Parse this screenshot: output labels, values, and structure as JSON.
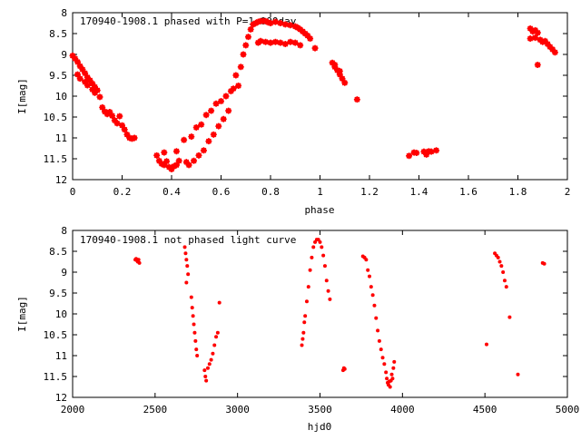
{
  "chart_data": [
    {
      "type": "scatter",
      "title": "170940-1908.1 phased with P=1.000day",
      "xlabel": "phase",
      "ylabel": "I[mag]",
      "xlim": [
        0,
        2
      ],
      "ylim": [
        12,
        8
      ],
      "y_inverted": true,
      "grid": false,
      "xticks": [
        "0",
        "0.2",
        "0.4",
        "0.6",
        "0.8",
        "1",
        "1.2",
        "1.4",
        "1.6",
        "1.8",
        "2"
      ],
      "yticks": [
        "8",
        "8.5",
        "9",
        "9.5",
        "10",
        "10.5",
        "11",
        "11.5",
        "12"
      ],
      "marker_color": "#ff0000",
      "marker": "star",
      "series": [
        {
          "points": [
            [
              0.0,
              9.03
            ],
            [
              0.01,
              9.1
            ],
            [
              0.02,
              9.18
            ],
            [
              0.03,
              9.28
            ],
            [
              0.04,
              9.36
            ],
            [
              0.05,
              9.45
            ],
            [
              0.06,
              9.55
            ],
            [
              0.07,
              9.62
            ],
            [
              0.08,
              9.7
            ],
            [
              0.09,
              9.78
            ],
            [
              0.1,
              9.86
            ],
            [
              0.02,
              9.48
            ],
            [
              0.03,
              9.58
            ],
            [
              0.05,
              9.66
            ],
            [
              0.06,
              9.74
            ],
            [
              0.08,
              9.84
            ],
            [
              0.09,
              9.92
            ],
            [
              0.11,
              10.02
            ],
            [
              0.12,
              10.27
            ],
            [
              0.13,
              10.37
            ],
            [
              0.14,
              10.43
            ],
            [
              0.15,
              10.38
            ],
            [
              0.16,
              10.47
            ],
            [
              0.17,
              10.58
            ],
            [
              0.18,
              10.65
            ],
            [
              0.19,
              10.48
            ],
            [
              0.2,
              10.7
            ],
            [
              0.21,
              10.8
            ],
            [
              0.22,
              10.92
            ],
            [
              0.23,
              11.0
            ],
            [
              0.24,
              11.02
            ],
            [
              0.25,
              11.0
            ],
            [
              0.34,
              11.42
            ],
            [
              0.35,
              11.55
            ],
            [
              0.36,
              11.62
            ],
            [
              0.37,
              11.65
            ],
            [
              0.38,
              11.56
            ],
            [
              0.37,
              11.35
            ],
            [
              0.39,
              11.7
            ],
            [
              0.4,
              11.75
            ],
            [
              0.41,
              11.68
            ],
            [
              0.42,
              11.65
            ],
            [
              0.43,
              11.55
            ],
            [
              0.42,
              11.32
            ],
            [
              0.45,
              11.05
            ],
            [
              0.46,
              11.58
            ],
            [
              0.47,
              11.65
            ],
            [
              0.48,
              10.97
            ],
            [
              0.49,
              11.55
            ],
            [
              0.5,
              10.75
            ],
            [
              0.51,
              11.42
            ],
            [
              0.52,
              10.68
            ],
            [
              0.53,
              11.3
            ],
            [
              0.54,
              10.45
            ],
            [
              0.55,
              11.08
            ],
            [
              0.56,
              10.35
            ],
            [
              0.57,
              10.92
            ],
            [
              0.58,
              10.18
            ],
            [
              0.59,
              10.72
            ],
            [
              0.6,
              10.12
            ],
            [
              0.61,
              10.55
            ],
            [
              0.62,
              10.0
            ],
            [
              0.63,
              10.35
            ],
            [
              0.64,
              9.88
            ],
            [
              0.65,
              9.82
            ],
            [
              0.66,
              9.5
            ],
            [
              0.67,
              9.75
            ],
            [
              0.68,
              9.3
            ],
            [
              0.69,
              9.0
            ],
            [
              0.7,
              8.78
            ],
            [
              0.71,
              8.58
            ],
            [
              0.72,
              8.4
            ],
            [
              0.73,
              8.28
            ],
            [
              0.74,
              8.25
            ],
            [
              0.75,
              8.22
            ],
            [
              0.76,
              8.2
            ],
            [
              0.77,
              8.2
            ],
            [
              0.78,
              8.2
            ],
            [
              0.79,
              8.23
            ],
            [
              0.75,
              8.72
            ],
            [
              0.76,
              8.68
            ],
            [
              0.78,
              8.7
            ],
            [
              0.8,
              8.72
            ],
            [
              0.82,
              8.7
            ],
            [
              0.84,
              8.72
            ],
            [
              0.86,
              8.75
            ],
            [
              0.88,
              8.7
            ],
            [
              0.9,
              8.72
            ],
            [
              0.92,
              8.78
            ],
            [
              0.8,
              8.25
            ],
            [
              0.82,
              8.22
            ],
            [
              0.84,
              8.25
            ],
            [
              0.86,
              8.28
            ],
            [
              0.88,
              8.3
            ],
            [
              0.9,
              8.33
            ],
            [
              0.91,
              8.36
            ],
            [
              0.92,
              8.4
            ],
            [
              0.93,
              8.45
            ],
            [
              0.94,
              8.5
            ],
            [
              0.95,
              8.55
            ],
            [
              0.96,
              8.62
            ],
            [
              0.98,
              8.85
            ],
            [
              1.05,
              9.2
            ],
            [
              1.06,
              9.3
            ],
            [
              1.07,
              9.38
            ],
            [
              1.08,
              9.48
            ],
            [
              1.09,
              9.58
            ],
            [
              1.1,
              9.68
            ],
            [
              1.06,
              9.25
            ],
            [
              1.08,
              9.4
            ],
            [
              1.15,
              10.08
            ],
            [
              1.36,
              11.43
            ],
            [
              1.38,
              11.35
            ],
            [
              1.39,
              11.36
            ],
            [
              1.42,
              11.33
            ],
            [
              1.43,
              11.4
            ],
            [
              1.44,
              11.32
            ],
            [
              1.45,
              11.33
            ],
            [
              1.47,
              11.3
            ],
            [
              1.85,
              8.38
            ],
            [
              1.86,
              8.45
            ],
            [
              1.87,
              8.42
            ],
            [
              1.88,
              8.48
            ],
            [
              1.85,
              8.62
            ],
            [
              1.87,
              8.6
            ],
            [
              1.89,
              8.65
            ],
            [
              1.9,
              8.7
            ],
            [
              1.91,
              8.68
            ],
            [
              1.92,
              8.75
            ],
            [
              1.93,
              8.82
            ],
            [
              1.94,
              8.88
            ],
            [
              1.95,
              8.95
            ],
            [
              1.88,
              9.25
            ]
          ]
        }
      ]
    },
    {
      "type": "scatter",
      "title": "170940-1908.1 not phased light curve",
      "xlabel": "hjd0",
      "ylabel": "I[mag]",
      "xlim": [
        2000,
        5000
      ],
      "ylim": [
        12,
        8
      ],
      "y_inverted": true,
      "grid": false,
      "xticks": [
        "2000",
        "2500",
        "3000",
        "3500",
        "4000",
        "4500",
        "5000"
      ],
      "yticks": [
        "8",
        "8.5",
        "9",
        "9.5",
        "10",
        "10.5",
        "11",
        "11.5",
        "12"
      ],
      "marker_color": "#ff0000",
      "marker": "dot",
      "series": [
        {
          "points": [
            [
              2380,
              8.7
            ],
            [
              2385,
              8.68
            ],
            [
              2390,
              8.72
            ],
            [
              2395,
              8.75
            ],
            [
              2400,
              8.7
            ],
            [
              2405,
              8.78
            ],
            [
              2680,
              8.4
            ],
            [
              2685,
              8.55
            ],
            [
              2690,
              8.7
            ],
            [
              2695,
              8.85
            ],
            [
              2690,
              9.25
            ],
            [
              2700,
              9.05
            ],
            [
              2720,
              9.6
            ],
            [
              2725,
              9.85
            ],
            [
              2730,
              10.05
            ],
            [
              2735,
              10.25
            ],
            [
              2740,
              10.45
            ],
            [
              2745,
              10.65
            ],
            [
              2750,
              10.85
            ],
            [
              2755,
              11.0
            ],
            [
              2800,
              11.35
            ],
            [
              2805,
              11.5
            ],
            [
              2810,
              11.6
            ],
            [
              2820,
              11.3
            ],
            [
              2830,
              11.2
            ],
            [
              2840,
              11.1
            ],
            [
              2850,
              10.95
            ],
            [
              2860,
              10.75
            ],
            [
              2870,
              10.55
            ],
            [
              2880,
              10.45
            ],
            [
              2890,
              9.73
            ],
            [
              3390,
              10.75
            ],
            [
              3395,
              10.6
            ],
            [
              3400,
              10.45
            ],
            [
              3405,
              10.2
            ],
            [
              3410,
              10.05
            ],
            [
              3420,
              9.7
            ],
            [
              3430,
              9.35
            ],
            [
              3440,
              8.95
            ],
            [
              3450,
              8.65
            ],
            [
              3460,
              8.4
            ],
            [
              3470,
              8.28
            ],
            [
              3480,
              8.22
            ],
            [
              3490,
              8.22
            ],
            [
              3500,
              8.28
            ],
            [
              3510,
              8.4
            ],
            [
              3520,
              8.6
            ],
            [
              3530,
              8.85
            ],
            [
              3540,
              9.2
            ],
            [
              3550,
              9.45
            ],
            [
              3560,
              9.65
            ],
            [
              3640,
              11.35
            ],
            [
              3645,
              11.3
            ],
            [
              3650,
              11.32
            ],
            [
              3760,
              8.62
            ],
            [
              3770,
              8.65
            ],
            [
              3780,
              8.7
            ],
            [
              3790,
              8.95
            ],
            [
              3800,
              9.1
            ],
            [
              3810,
              9.35
            ],
            [
              3820,
              9.55
            ],
            [
              3830,
              9.8
            ],
            [
              3840,
              10.1
            ],
            [
              3850,
              10.4
            ],
            [
              3860,
              10.65
            ],
            [
              3870,
              10.85
            ],
            [
              3880,
              11.05
            ],
            [
              3890,
              11.2
            ],
            [
              3900,
              11.4
            ],
            [
              3905,
              11.55
            ],
            [
              3910,
              11.65
            ],
            [
              3915,
              11.7
            ],
            [
              3920,
              11.62
            ],
            [
              3925,
              11.75
            ],
            [
              3930,
              11.6
            ],
            [
              3935,
              11.45
            ],
            [
              3940,
              11.55
            ],
            [
              3945,
              11.3
            ],
            [
              3950,
              11.15
            ],
            [
              4510,
              10.73
            ],
            [
              4560,
              8.55
            ],
            [
              4570,
              8.6
            ],
            [
              4580,
              8.65
            ],
            [
              4590,
              8.75
            ],
            [
              4600,
              8.85
            ],
            [
              4610,
              9.0
            ],
            [
              4620,
              9.2
            ],
            [
              4630,
              9.35
            ],
            [
              4650,
              10.08
            ],
            [
              4700,
              11.45
            ],
            [
              4850,
              8.78
            ],
            [
              4860,
              8.8
            ]
          ]
        }
      ]
    }
  ]
}
